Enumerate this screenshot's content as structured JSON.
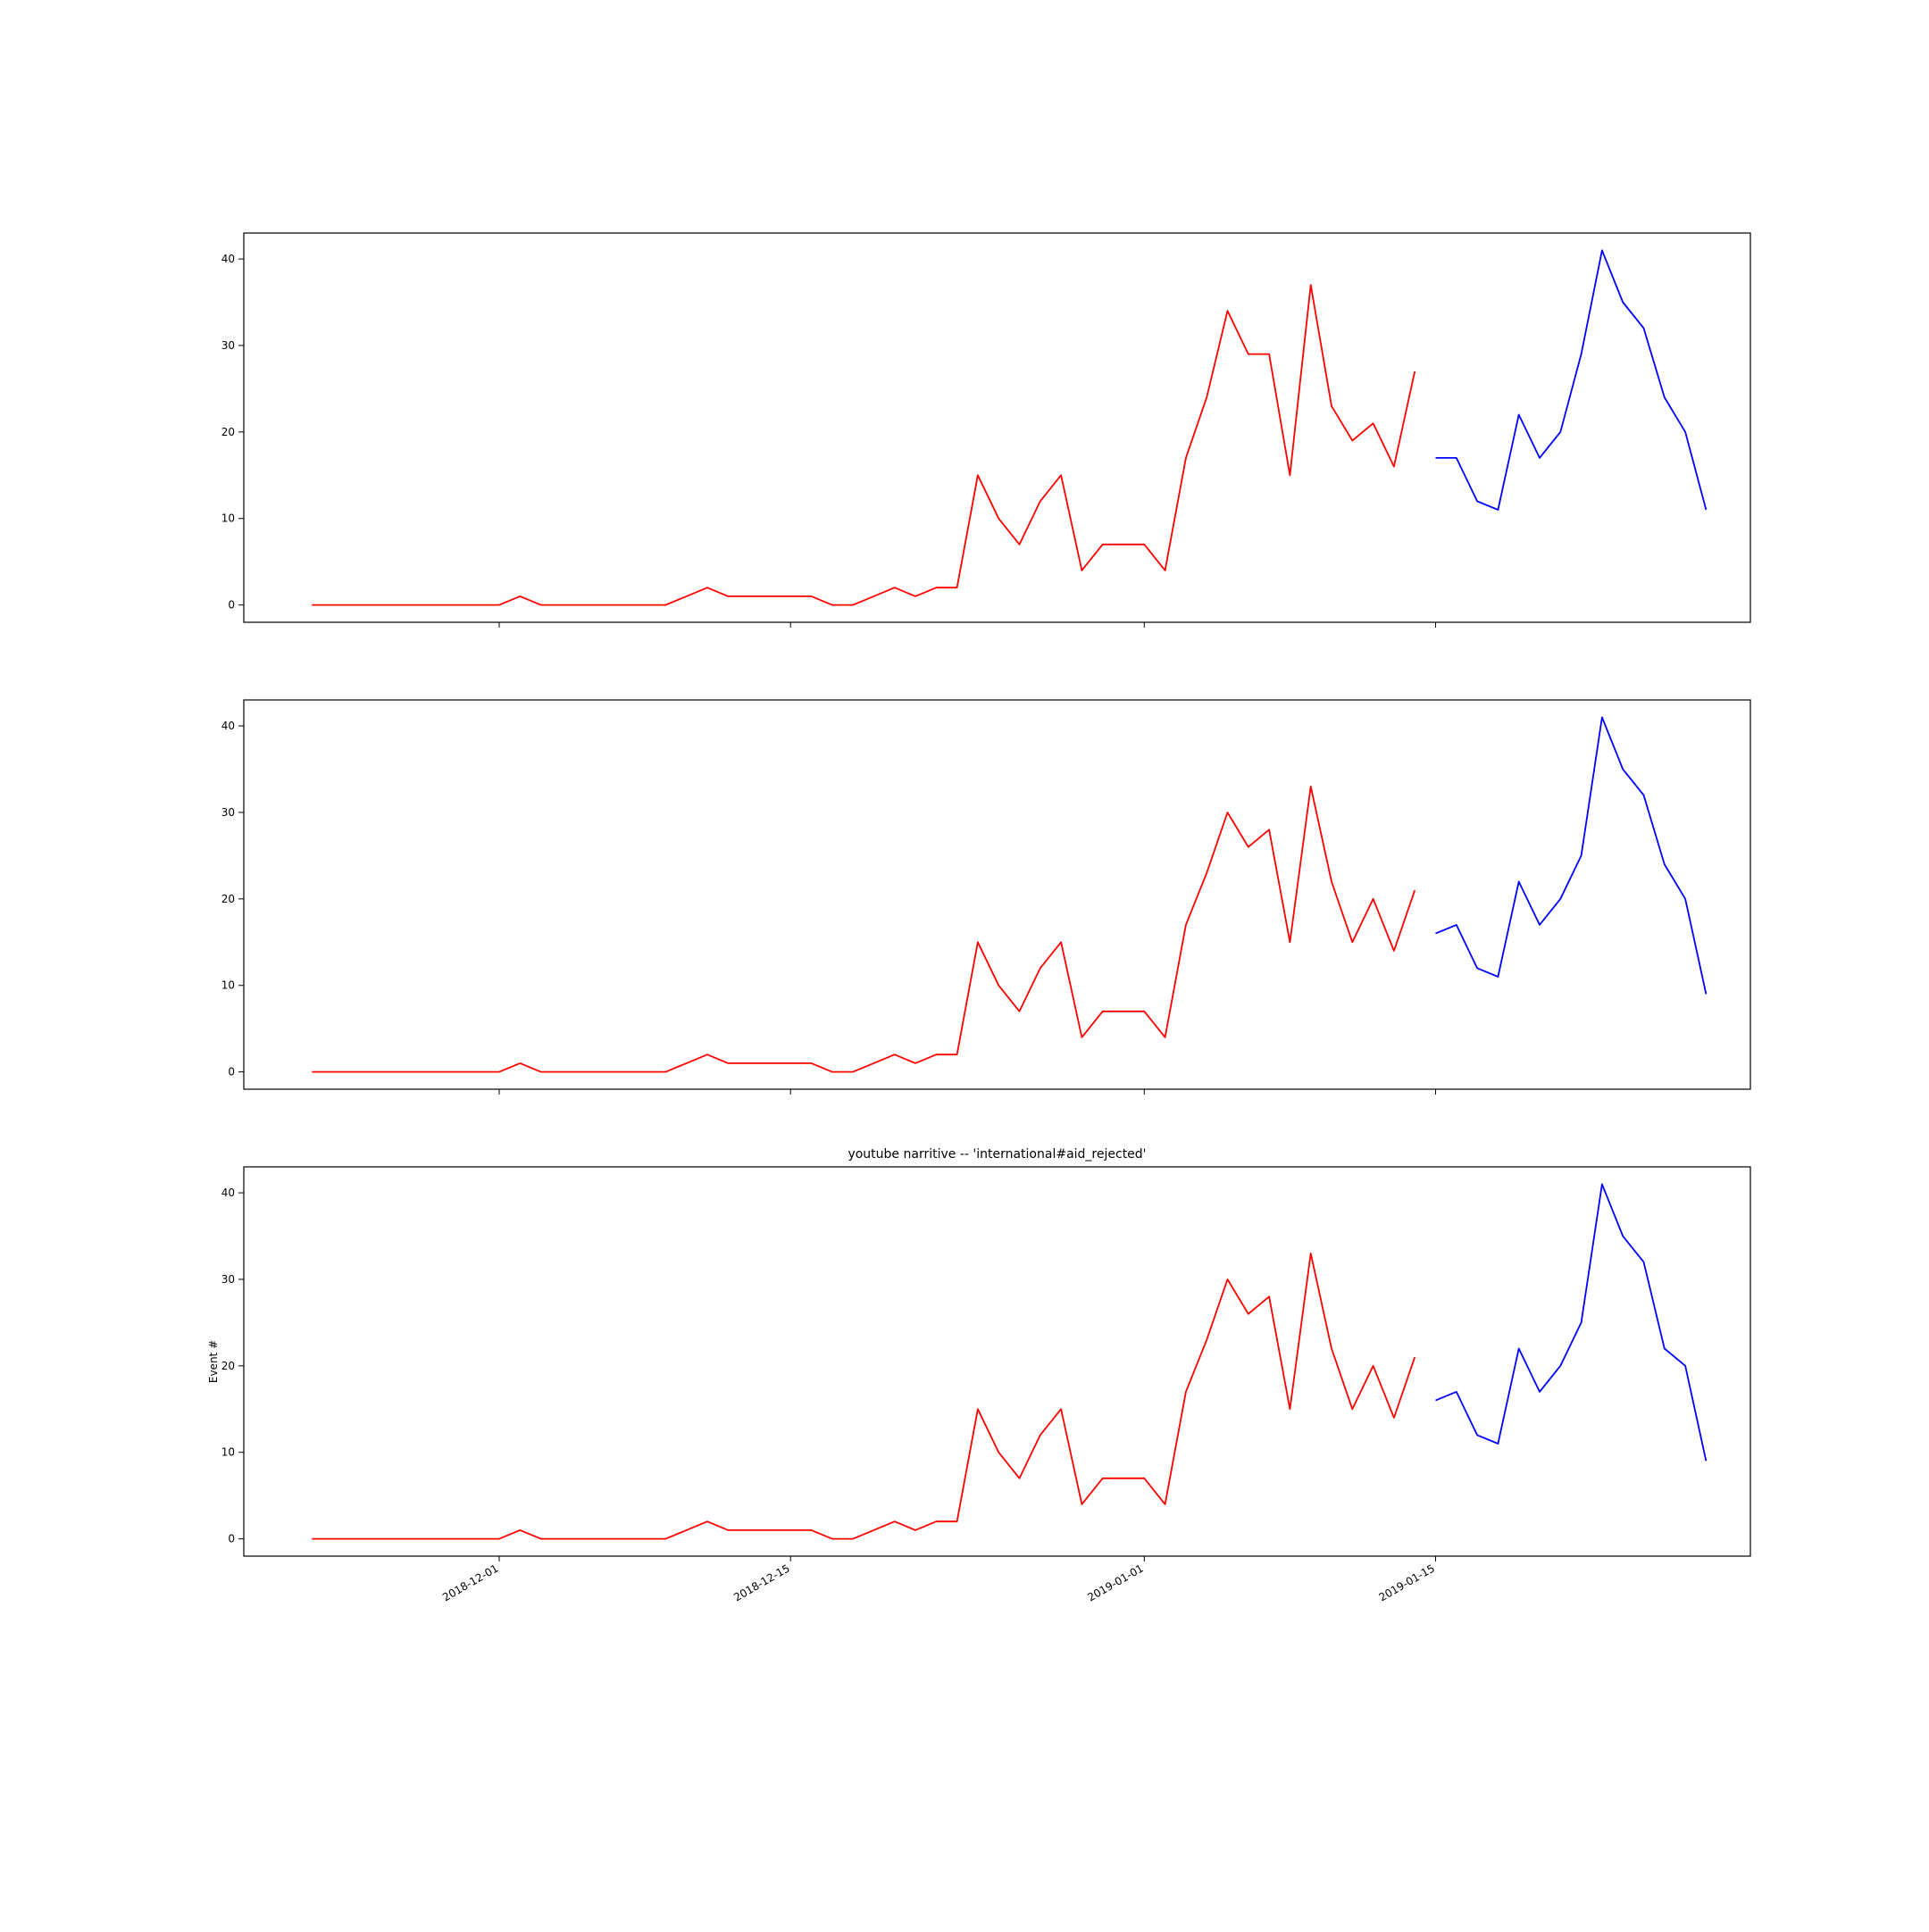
{
  "chart_data": [
    {
      "type": "line",
      "title": "",
      "xlabel": "",
      "ylabel": "",
      "ylim": [
        -2,
        43
      ],
      "yticks": [
        0,
        10,
        20,
        30,
        40
      ],
      "xticks": [
        "2018-12-01",
        "2018-12-15",
        "2019-01-01",
        "2019-01-15"
      ],
      "show_xtick_labels": false,
      "grid": false,
      "series": [
        {
          "color": "#ff0000",
          "x": [
            "2018-11-22",
            "2018-11-23",
            "2018-11-24",
            "2018-11-25",
            "2018-11-26",
            "2018-11-27",
            "2018-11-28",
            "2018-11-29",
            "2018-11-30",
            "2018-12-01",
            "2018-12-02",
            "2018-12-03",
            "2018-12-04",
            "2018-12-05",
            "2018-12-06",
            "2018-12-07",
            "2018-12-08",
            "2018-12-09",
            "2018-12-10",
            "2018-12-11",
            "2018-12-12",
            "2018-12-13",
            "2018-12-14",
            "2018-12-15",
            "2018-12-16",
            "2018-12-17",
            "2018-12-18",
            "2018-12-19",
            "2018-12-20",
            "2018-12-21",
            "2018-12-22",
            "2018-12-23",
            "2018-12-24",
            "2018-12-25",
            "2018-12-26",
            "2018-12-27",
            "2018-12-28",
            "2018-12-29",
            "2018-12-30",
            "2018-12-31",
            "2019-01-01",
            "2019-01-02",
            "2019-01-03",
            "2019-01-04",
            "2019-01-05",
            "2019-01-06",
            "2019-01-07",
            "2019-01-08",
            "2019-01-09",
            "2019-01-10",
            "2019-01-11",
            "2019-01-12",
            "2019-01-13",
            "2019-01-14"
          ],
          "values": [
            0,
            0,
            0,
            0,
            0,
            0,
            0,
            0,
            0,
            0,
            1,
            0,
            0,
            0,
            0,
            0,
            0,
            0,
            1,
            2,
            1,
            1,
            1,
            1,
            1,
            0,
            0,
            1,
            2,
            1,
            2,
            2,
            15,
            10,
            7,
            12,
            15,
            4,
            7,
            7,
            7,
            4,
            17,
            24,
            34,
            29,
            29,
            15,
            37,
            23,
            19,
            21,
            16,
            27
          ]
        },
        {
          "color": "#0000ff",
          "x": [
            "2019-01-15",
            "2019-01-16",
            "2019-01-17",
            "2019-01-18",
            "2019-01-19",
            "2019-01-20",
            "2019-01-21",
            "2019-01-22",
            "2019-01-23",
            "2019-01-24",
            "2019-01-25",
            "2019-01-26",
            "2019-01-27",
            "2019-01-28"
          ],
          "values": [
            17,
            17,
            12,
            11,
            22,
            17,
            20,
            29,
            41,
            35,
            32,
            24,
            20,
            11
          ]
        }
      ]
    },
    {
      "type": "line",
      "title": "",
      "xlabel": "",
      "ylabel": "",
      "ylim": [
        -2,
        43
      ],
      "yticks": [
        0,
        10,
        20,
        30,
        40
      ],
      "xticks": [
        "2018-12-01",
        "2018-12-15",
        "2019-01-01",
        "2019-01-15"
      ],
      "show_xtick_labels": false,
      "grid": false,
      "series": [
        {
          "color": "#ff0000",
          "x": [
            "2018-11-22",
            "2018-11-23",
            "2018-11-24",
            "2018-11-25",
            "2018-11-26",
            "2018-11-27",
            "2018-11-28",
            "2018-11-29",
            "2018-11-30",
            "2018-12-01",
            "2018-12-02",
            "2018-12-03",
            "2018-12-04",
            "2018-12-05",
            "2018-12-06",
            "2018-12-07",
            "2018-12-08",
            "2018-12-09",
            "2018-12-10",
            "2018-12-11",
            "2018-12-12",
            "2018-12-13",
            "2018-12-14",
            "2018-12-15",
            "2018-12-16",
            "2018-12-17",
            "2018-12-18",
            "2018-12-19",
            "2018-12-20",
            "2018-12-21",
            "2018-12-22",
            "2018-12-23",
            "2018-12-24",
            "2018-12-25",
            "2018-12-26",
            "2018-12-27",
            "2018-12-28",
            "2018-12-29",
            "2018-12-30",
            "2018-12-31",
            "2019-01-01",
            "2019-01-02",
            "2019-01-03",
            "2019-01-04",
            "2019-01-05",
            "2019-01-06",
            "2019-01-07",
            "2019-01-08",
            "2019-01-09",
            "2019-01-10",
            "2019-01-11",
            "2019-01-12",
            "2019-01-13",
            "2019-01-14"
          ],
          "values": [
            0,
            0,
            0,
            0,
            0,
            0,
            0,
            0,
            0,
            0,
            1,
            0,
            0,
            0,
            0,
            0,
            0,
            0,
            1,
            2,
            1,
            1,
            1,
            1,
            1,
            0,
            0,
            1,
            2,
            1,
            2,
            2,
            15,
            10,
            7,
            12,
            15,
            4,
            7,
            7,
            7,
            4,
            17,
            23,
            30,
            26,
            28,
            15,
            33,
            22,
            15,
            20,
            14,
            21
          ]
        },
        {
          "color": "#0000ff",
          "x": [
            "2019-01-15",
            "2019-01-16",
            "2019-01-17",
            "2019-01-18",
            "2019-01-19",
            "2019-01-20",
            "2019-01-21",
            "2019-01-22",
            "2019-01-23",
            "2019-01-24",
            "2019-01-25",
            "2019-01-26",
            "2019-01-27",
            "2019-01-28"
          ],
          "values": [
            16,
            17,
            12,
            11,
            22,
            17,
            20,
            25,
            41,
            35,
            32,
            24,
            20,
            9
          ]
        }
      ]
    },
    {
      "type": "line",
      "title": "youtube narritive -- 'international#aid_rejected'",
      "xlabel": "",
      "ylabel": "Event #",
      "ylim": [
        -2,
        43
      ],
      "yticks": [
        0,
        10,
        20,
        30,
        40
      ],
      "xticks": [
        "2018-12-01",
        "2018-12-15",
        "2019-01-01",
        "2019-01-15"
      ],
      "show_xtick_labels": true,
      "grid": false,
      "series": [
        {
          "color": "#ff0000",
          "x": [
            "2018-11-22",
            "2018-11-23",
            "2018-11-24",
            "2018-11-25",
            "2018-11-26",
            "2018-11-27",
            "2018-11-28",
            "2018-11-29",
            "2018-11-30",
            "2018-12-01",
            "2018-12-02",
            "2018-12-03",
            "2018-12-04",
            "2018-12-05",
            "2018-12-06",
            "2018-12-07",
            "2018-12-08",
            "2018-12-09",
            "2018-12-10",
            "2018-12-11",
            "2018-12-12",
            "2018-12-13",
            "2018-12-14",
            "2018-12-15",
            "2018-12-16",
            "2018-12-17",
            "2018-12-18",
            "2018-12-19",
            "2018-12-20",
            "2018-12-21",
            "2018-12-22",
            "2018-12-23",
            "2018-12-24",
            "2018-12-25",
            "2018-12-26",
            "2018-12-27",
            "2018-12-28",
            "2018-12-29",
            "2018-12-30",
            "2018-12-31",
            "2019-01-01",
            "2019-01-02",
            "2019-01-03",
            "2019-01-04",
            "2019-01-05",
            "2019-01-06",
            "2019-01-07",
            "2019-01-08",
            "2019-01-09",
            "2019-01-10",
            "2019-01-11",
            "2019-01-12",
            "2019-01-13",
            "2019-01-14"
          ],
          "values": [
            0,
            0,
            0,
            0,
            0,
            0,
            0,
            0,
            0,
            0,
            1,
            0,
            0,
            0,
            0,
            0,
            0,
            0,
            1,
            2,
            1,
            1,
            1,
            1,
            1,
            0,
            0,
            1,
            2,
            1,
            2,
            2,
            15,
            10,
            7,
            12,
            15,
            4,
            7,
            7,
            7,
            4,
            17,
            23,
            30,
            26,
            28,
            15,
            33,
            22,
            15,
            20,
            14,
            21
          ]
        },
        {
          "color": "#0000ff",
          "x": [
            "2019-01-15",
            "2019-01-16",
            "2019-01-17",
            "2019-01-18",
            "2019-01-19",
            "2019-01-20",
            "2019-01-21",
            "2019-01-22",
            "2019-01-23",
            "2019-01-24",
            "2019-01-25",
            "2019-01-26",
            "2019-01-27",
            "2019-01-28"
          ],
          "values": [
            16,
            17,
            12,
            11,
            22,
            17,
            20,
            25,
            41,
            35,
            32,
            22,
            20,
            9
          ]
        }
      ]
    }
  ]
}
